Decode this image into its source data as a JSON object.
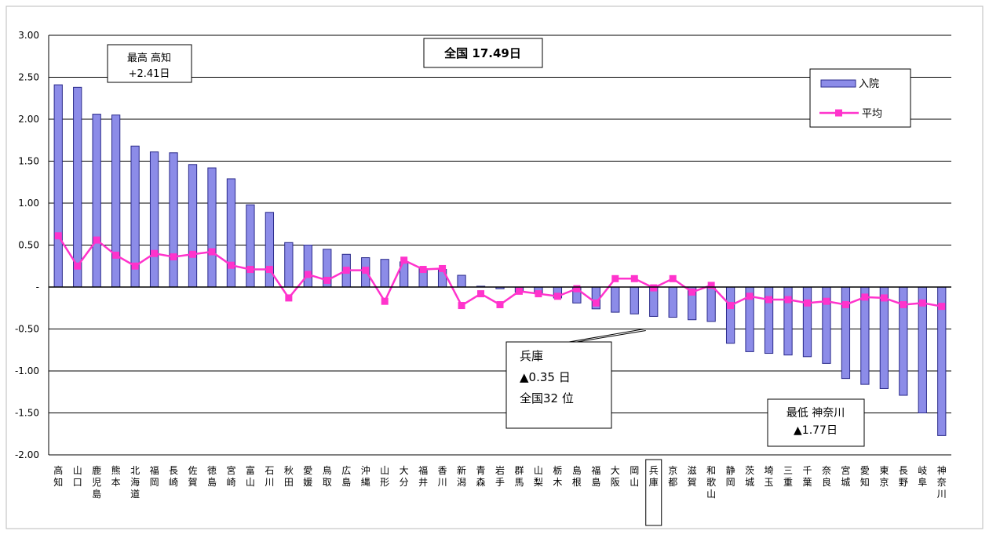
{
  "chart_data": {
    "type": "bar",
    "title_box": "全国 17.49日",
    "categories": [
      "高知",
      "山口",
      "鹿児島",
      "熊本",
      "北海道",
      "福岡",
      "長崎",
      "佐賀",
      "徳島",
      "宮崎",
      "富山",
      "石川",
      "秋田",
      "愛媛",
      "鳥取",
      "広島",
      "沖縄",
      "山形",
      "大分",
      "福井",
      "香川",
      "新潟",
      "青森",
      "岩手",
      "群馬",
      "山梨",
      "栃木",
      "島根",
      "福島",
      "大阪",
      "岡山",
      "兵庫",
      "京都",
      "滋賀",
      "和歌山",
      "静岡",
      "茨城",
      "埼玉",
      "三重",
      "千葉",
      "奈良",
      "宮城",
      "愛知",
      "東京",
      "長野",
      "岐阜",
      "神奈川"
    ],
    "series": [
      {
        "name": "入院",
        "kind": "bar",
        "color": "#8c8ce8",
        "values": [
          2.41,
          2.38,
          2.06,
          2.05,
          1.68,
          1.61,
          1.6,
          1.46,
          1.42,
          1.29,
          0.98,
          0.89,
          0.53,
          0.5,
          0.45,
          0.39,
          0.35,
          0.33,
          0.3,
          0.22,
          0.21,
          0.14,
          0.01,
          -0.02,
          -0.06,
          -0.08,
          -0.13,
          -0.19,
          -0.26,
          -0.3,
          -0.32,
          -0.35,
          -0.36,
          -0.39,
          -0.41,
          -0.67,
          -0.77,
          -0.79,
          -0.81,
          -0.83,
          -0.91,
          -1.09,
          -1.16,
          -1.21,
          -1.29,
          -1.5,
          -1.77
        ]
      },
      {
        "name": "平均",
        "kind": "line",
        "color": "#ff33cc",
        "values": [
          0.61,
          0.25,
          0.56,
          0.38,
          0.25,
          0.4,
          0.36,
          0.39,
          0.42,
          0.26,
          0.21,
          0.21,
          -0.13,
          0.15,
          0.08,
          0.2,
          0.2,
          -0.17,
          0.32,
          0.21,
          0.22,
          -0.22,
          -0.08,
          -0.21,
          -0.05,
          -0.08,
          -0.11,
          -0.02,
          -0.19,
          0.1,
          0.1,
          -0.01,
          0.1,
          -0.06,
          0.02,
          -0.22,
          -0.11,
          -0.15,
          -0.15,
          -0.19,
          -0.17,
          -0.21,
          -0.12,
          -0.13,
          -0.21,
          -0.19,
          -0.23
        ]
      }
    ],
    "ylim": [
      -2.0,
      3.0
    ],
    "yticks": [
      3.0,
      2.5,
      2.0,
      1.5,
      1.0,
      0.5,
      0,
      -0.5,
      -1.0,
      -1.5,
      -2.0
    ],
    "ytick_labels": [
      "3.00",
      "2.50",
      "2.00",
      "1.50",
      "1.00",
      "0.50",
      "-",
      "-0.50",
      "-1.00",
      "-1.50",
      "-2.00"
    ],
    "grid": true,
    "legend_position": "top-right",
    "highlight_category": "兵庫",
    "annotations": {
      "max": {
        "lines": [
          "最高 高知",
          "+2.41日"
        ]
      },
      "hyogo": {
        "lines": [
          "兵庫",
          "▲0.35 日",
          "全国32 位"
        ]
      },
      "min": {
        "lines": [
          "最低 神奈川",
          "▲1.77日"
        ]
      }
    }
  }
}
